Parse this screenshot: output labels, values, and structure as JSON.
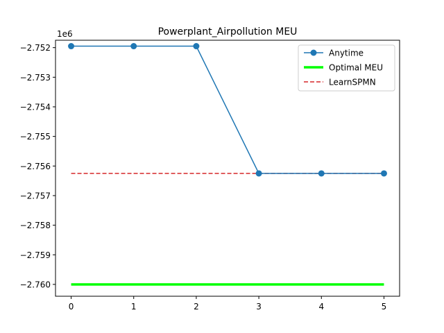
{
  "chart_data": {
    "type": "line",
    "title": "Powerplant_Airpollution MEU",
    "xlabel": "",
    "ylabel": "",
    "y_offset_label": "1e6",
    "x": [
      0,
      1,
      2,
      3,
      4,
      5
    ],
    "xlim": [
      -0.25,
      5.25
    ],
    "ylim": [
      -2.7604,
      -2.75175
    ],
    "x_ticks": [
      0,
      1,
      2,
      3,
      4,
      5
    ],
    "y_ticks": [
      -2.752,
      -2.753,
      -2.754,
      -2.755,
      -2.756,
      -2.757,
      -2.758,
      -2.759,
      -2.76
    ],
    "y_tick_labels": [
      "−2.752",
      "−2.753",
      "−2.754",
      "−2.755",
      "−2.756",
      "−2.757",
      "−2.758",
      "−2.759",
      "−2.760"
    ],
    "series": [
      {
        "name": "Anytime",
        "style": "line-marker",
        "color": "#1f77b4",
        "values": [
          -2.75195,
          -2.75195,
          -2.75195,
          -2.75625,
          -2.75625,
          -2.75625
        ]
      },
      {
        "name": "Optimal MEU",
        "style": "thick-line",
        "color": "#00ff00",
        "values": [
          -2.76,
          -2.76,
          -2.76,
          -2.76,
          -2.76,
          -2.76
        ]
      },
      {
        "name": "LearnSPMN",
        "style": "dashed",
        "color": "#d62728",
        "values": [
          -2.75625,
          -2.75625,
          -2.75625,
          -2.75625,
          -2.75625,
          -2.75625
        ]
      }
    ],
    "legend_position": "top-right",
    "grid": false
  }
}
